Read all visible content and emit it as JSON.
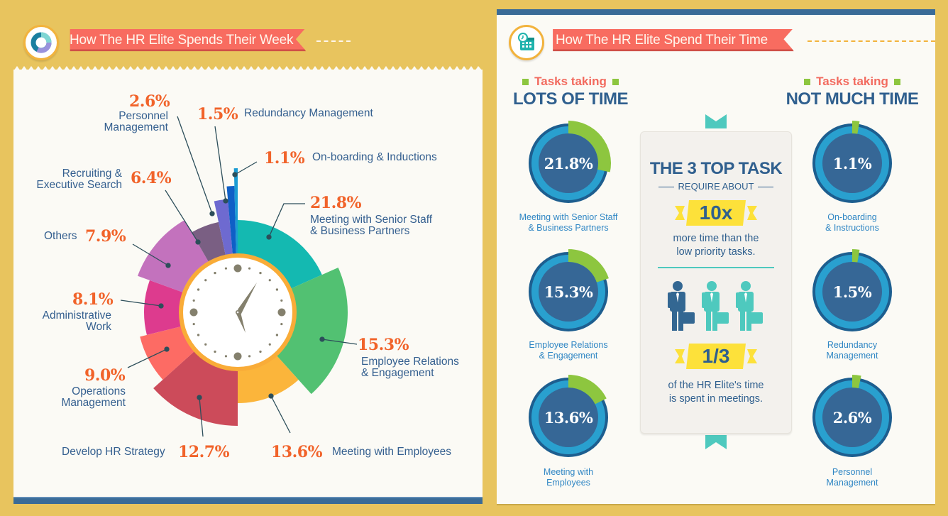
{
  "left": {
    "title": "How The HR Elite Spends Their Week",
    "icon": "donut-chart-icon",
    "segments": [
      {
        "pct": "21.8%",
        "label_lines": [
          "Meeting with Senior Staff",
          "& Business Partners"
        ],
        "color": "#14b9b1"
      },
      {
        "pct": "15.3%",
        "label_lines": [
          "Employee Relations",
          "& Engagement"
        ],
        "color": "#52c172"
      },
      {
        "pct": "13.6%",
        "label_lines": [
          "Meeting with Employees"
        ],
        "color": "#fbb53b"
      },
      {
        "pct": "12.7%",
        "label_lines": [
          "Develop HR Strategy"
        ],
        "color": "#cc4b5a"
      },
      {
        "pct": "9.0%",
        "label_lines": [
          "Operations",
          "Management"
        ],
        "color": "#fd6b64"
      },
      {
        "pct": "8.1%",
        "label_lines": [
          "Administrative",
          "Work"
        ],
        "color": "#dd3b8e"
      },
      {
        "pct": "7.9%",
        "label_lines": [
          "Others"
        ],
        "color": "#c372bd"
      },
      {
        "pct": "6.4%",
        "label_lines": [
          "Recruiting &",
          "Executive Search"
        ],
        "color": "#7a5f83"
      },
      {
        "pct": "2.6%",
        "label_lines": [
          "Personnel",
          "Management"
        ],
        "color": "#6e6ad0"
      },
      {
        "pct": "1.5%",
        "label_lines": [
          "Redundancy Management"
        ],
        "color": "#0f5fc6"
      },
      {
        "pct": "1.1%",
        "label_lines": [
          "On-boarding & Inductions"
        ],
        "color": "#1a9bd3"
      }
    ]
  },
  "right": {
    "title": "How The HR Elite Spend Their Time",
    "icon": "clock-calendar-icon",
    "lots": {
      "small": "Tasks taking",
      "big": "LOTS OF TIME"
    },
    "not_much": {
      "small": "Tasks taking",
      "big": "NOT MUCH TIME"
    },
    "top_tasks": [
      {
        "value": "21.8%",
        "pct": 21.8,
        "label_lines": [
          "Meeting with Senior Staff",
          "& Business Partners"
        ]
      },
      {
        "value": "15.3%",
        "pct": 15.3,
        "label_lines": [
          "Employee Relations",
          "& Engagement"
        ]
      },
      {
        "value": "13.6%",
        "pct": 13.6,
        "label_lines": [
          "Meeting with",
          "Employees"
        ]
      }
    ],
    "low_tasks": [
      {
        "value": "1.1%",
        "pct": 1.1,
        "label_lines": [
          "On-boarding",
          "& Instructions"
        ]
      },
      {
        "value": "1.5%",
        "pct": 1.5,
        "label_lines": [
          "Redundancy",
          "Management"
        ]
      },
      {
        "value": "2.6%",
        "pct": 2.6,
        "label_lines": [
          "Personnel",
          "Management"
        ]
      }
    ],
    "center": {
      "title": "THE 3 TOP TASK",
      "sub": "REQUIRE ABOUT",
      "multiplier": "10x",
      "multiplier_text_1": "more time than the",
      "multiplier_text_2": "low priority tasks.",
      "fraction": "1/3",
      "fraction_text_1": "of the HR Elite's time",
      "fraction_text_2": "is spent in meetings."
    }
  },
  "chart_data": [
    {
      "type": "pie",
      "title": "How The HR Elite Spends Their Week",
      "categories": [
        "Meeting with Senior Staff & Business Partners",
        "Employee Relations & Engagement",
        "Meeting with Employees",
        "Develop HR Strategy",
        "Operations Management",
        "Administrative Work",
        "Others",
        "Recruiting & Executive Search",
        "Personnel Management",
        "Redundancy Management",
        "On-boarding & Inductions"
      ],
      "values": [
        21.8,
        15.3,
        13.6,
        12.7,
        9.0,
        8.1,
        7.9,
        6.4,
        2.6,
        1.5,
        1.1
      ],
      "unit": "%",
      "legend": "callout labels around chart"
    },
    {
      "type": "pie",
      "title": "How The HR Elite Spend Their Time",
      "series": [
        {
          "name": "Tasks taking LOTS OF TIME",
          "categories": [
            "Meeting with Senior Staff & Business Partners",
            "Employee Relations & Engagement",
            "Meeting with Employees"
          ],
          "values": [
            21.8,
            15.3,
            13.6
          ]
        },
        {
          "name": "Tasks taking NOT MUCH TIME",
          "categories": [
            "On-boarding & Instructions",
            "Redundancy Management",
            "Personnel Management"
          ],
          "values": [
            1.1,
            1.5,
            2.6
          ]
        }
      ],
      "annotations": [
        "THE 3 TOP TASK REQUIRE ABOUT 10x more time than the low priority tasks.",
        "1/3 of the HR Elite's time is spent in meetings."
      ]
    }
  ]
}
